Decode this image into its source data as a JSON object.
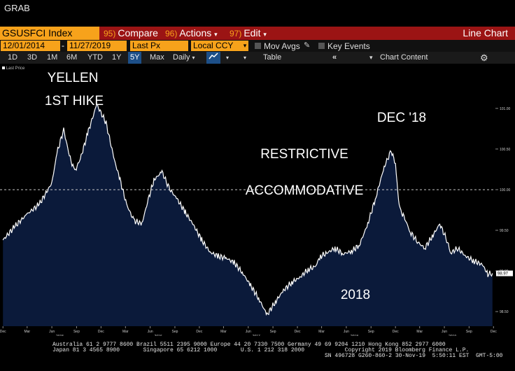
{
  "window": {
    "title": "GRAB"
  },
  "toolbar": {
    "ticker": "GSUSFCI Index",
    "compare_num": "95)",
    "compare_label": "Compare",
    "actions_num": "96)",
    "actions_label": "Actions",
    "edit_num": "97)",
    "edit_label": "Edit",
    "chart_type": "Line Chart"
  },
  "dates": {
    "start": "12/01/2014",
    "end": "11/27/2019"
  },
  "fields": {
    "price": "Last Px",
    "currency": "Local CCY",
    "mov_avgs": "Mov Avgs",
    "key_events": "Key Events"
  },
  "periods": [
    "1D",
    "3D",
    "1M",
    "6M",
    "YTD",
    "1Y",
    "5Y",
    "Max"
  ],
  "active_period": "5Y",
  "frequency": "Daily",
  "table_label": "Table",
  "chart_content_label": "Chart Content",
  "colors": {
    "accent": "#f7a21b",
    "menu_bar": "#9b1414",
    "plot_fill": "#0b1a3a",
    "line": "#ffffff"
  },
  "icons": [
    "dropdown-arrow-icon",
    "pencil-icon",
    "chart-line-icon",
    "double-chevron-left-icon",
    "gear-icon"
  ],
  "footer": {
    "line1": "Australia 61 2 9777 8600 Brazil 5511 2395 9000 Europe 44 20 7330 7500 Germany 49 69 9204 1210 Hong Kong 852 2977 6000",
    "line2": "Japan 81 3 4565 8900       Singapore 65 6212 1000       U.S. 1 212 318 2000            Copyright 2019 Bloomberg Finance L.P.",
    "line3": "SN 496728 G260-860-2 30-Nov-19  5:50:11 EST  GMT-5:00"
  },
  "chart_data": {
    "type": "area",
    "series_label": "Last Price",
    "last_value_label": "98.97",
    "x_dates": [
      "2014-12-01",
      "2015-01-15",
      "2015-03-01",
      "2015-04-15",
      "2015-06-01",
      "2015-06-20",
      "2015-07-15",
      "2015-08-05",
      "2015-08-25",
      "2015-09-15",
      "2015-10-15",
      "2015-11-15",
      "2015-12-20",
      "2016-01-20",
      "2016-02-10",
      "2016-03-05",
      "2016-04-01",
      "2016-05-01",
      "2016-05-25",
      "2016-06-15",
      "2016-07-15",
      "2016-08-10",
      "2016-09-10",
      "2016-10-10",
      "2016-11-10",
      "2016-12-10",
      "2017-01-10",
      "2017-02-10",
      "2017-03-10",
      "2017-04-10",
      "2017-05-10",
      "2017-06-10",
      "2017-07-10",
      "2017-08-10",
      "2017-09-10",
      "2017-10-10",
      "2017-11-10",
      "2017-12-10",
      "2018-01-10",
      "2018-02-05",
      "2018-02-25",
      "2018-03-20",
      "2018-04-20",
      "2018-05-20",
      "2018-06-20",
      "2018-07-20",
      "2018-08-20",
      "2018-09-20",
      "2018-10-20",
      "2018-11-15",
      "2018-12-01",
      "2018-12-10",
      "2018-12-15",
      "2018-12-24",
      "2019-01-05",
      "2019-01-25",
      "2019-02-20",
      "2019-03-20",
      "2019-04-20",
      "2019-05-15",
      "2019-06-10",
      "2019-06-25",
      "2019-07-20",
      "2019-08-20",
      "2019-09-20",
      "2019-10-20",
      "2019-11-10",
      "2019-11-27"
    ],
    "values": [
      99.38,
      99.55,
      99.7,
      99.82,
      100.08,
      100.45,
      100.74,
      100.42,
      100.22,
      100.38,
      100.72,
      101.05,
      100.82,
      100.36,
      100.12,
      99.82,
      99.62,
      99.58,
      99.88,
      100.12,
      100.22,
      100.02,
      99.88,
      99.72,
      99.56,
      99.38,
      99.23,
      99.18,
      99.16,
      99.1,
      98.98,
      98.82,
      98.66,
      98.46,
      98.62,
      98.76,
      98.86,
      98.92,
      99.02,
      99.05,
      99.18,
      99.22,
      99.28,
      99.21,
      99.24,
      99.32,
      99.58,
      99.92,
      100.28,
      100.48,
      100.32,
      99.98,
      99.82,
      99.72,
      99.64,
      99.48,
      99.36,
      99.28,
      99.44,
      99.58,
      99.38,
      99.22,
      99.28,
      99.18,
      99.12,
      99.08,
      98.96,
      98.97
    ],
    "ylim": [
      98.32,
      101.3
    ],
    "yticks": [
      98.5,
      99.0,
      99.5,
      100.0,
      100.5,
      101.0
    ],
    "ytick_labels": [
      "98.50",
      "99.00",
      "99.50",
      "100.00",
      "100.50",
      "101.00"
    ],
    "xlim": [
      "2014-11-20",
      "2019-12-08"
    ],
    "xticks": [
      {
        "date": "2014-12-01",
        "label": "Dec"
      },
      {
        "date": "2015-03-01",
        "label": "Mar"
      },
      {
        "date": "2015-06-01",
        "label": "Jun"
      },
      {
        "date": "2015-09-01",
        "label": "Sep"
      },
      {
        "date": "2015-12-01",
        "label": "Dec"
      },
      {
        "date": "2016-03-01",
        "label": "Mar"
      },
      {
        "date": "2016-06-01",
        "label": "Jun"
      },
      {
        "date": "2016-09-01",
        "label": "Sep"
      },
      {
        "date": "2016-12-01",
        "label": "Dec"
      },
      {
        "date": "2017-03-01",
        "label": "Mar"
      },
      {
        "date": "2017-06-01",
        "label": "Jun"
      },
      {
        "date": "2017-09-01",
        "label": "Sep"
      },
      {
        "date": "2017-12-01",
        "label": "Dec"
      },
      {
        "date": "2018-03-01",
        "label": "Mar"
      },
      {
        "date": "2018-06-01",
        "label": "Jun"
      },
      {
        "date": "2018-09-01",
        "label": "Sep"
      },
      {
        "date": "2018-12-01",
        "label": "Dec"
      },
      {
        "date": "2019-03-01",
        "label": "Mar"
      },
      {
        "date": "2019-06-01",
        "label": "Jun"
      },
      {
        "date": "2019-09-01",
        "label": "Sep"
      },
      {
        "date": "2019-12-01",
        "label": "Dec"
      }
    ],
    "year_labels": [
      {
        "date": "2015-07-01",
        "label": "2015"
      },
      {
        "date": "2016-07-01",
        "label": "2016"
      },
      {
        "date": "2017-07-01",
        "label": "2017"
      },
      {
        "date": "2018-07-01",
        "label": "2018"
      },
      {
        "date": "2019-07-01",
        "label": "2019"
      }
    ],
    "reference_line": 100.0,
    "annotations": [
      {
        "text": "YELLEN"
      },
      {
        "text": "1ST HIKE"
      },
      {
        "text": "RESTRICTIVE"
      },
      {
        "text": "ACCOMMODATIVE"
      },
      {
        "text": "DEC '18"
      },
      {
        "text": "2018"
      }
    ]
  }
}
